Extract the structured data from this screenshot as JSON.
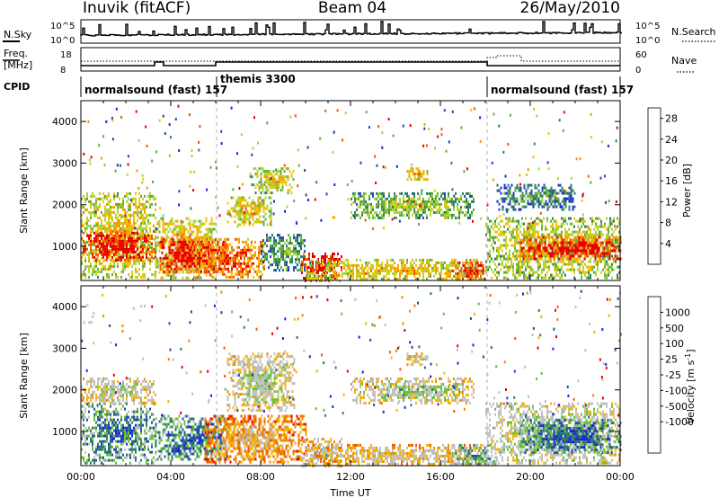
{
  "header": {
    "station": "Inuvik (fitACF)",
    "beam": "Beam 04",
    "date": "26/May/2010"
  },
  "summary_panels": {
    "nsky": {
      "label": "N.Sky",
      "ticks_left": [
        "10^5",
        "10^0"
      ],
      "right_label": "N.Search",
      "ticks_right": [
        "10^5",
        "10^0"
      ]
    },
    "freq": {
      "label_line1": "Freq.",
      "label_line2": "[MHz]",
      "ticks_left": [
        "18",
        "8"
      ],
      "right_label": "Nave",
      "ticks_right": [
        "60",
        "0"
      ]
    },
    "cpid": {
      "label": "CPID",
      "segments": [
        {
          "name": "normalsound (fast) 157",
          "start_h": 0,
          "end_h": 6
        },
        {
          "name": "themis 3300",
          "start_h": 6,
          "end_h": 18
        },
        {
          "name": "normalsound (fast) 157",
          "start_h": 18,
          "end_h": 24
        }
      ]
    }
  },
  "colors": {
    "power": [
      "#1e24dc",
      "#2448b4",
      "#2b7f63",
      "#5fae3c",
      "#a8d53a",
      "#f0c400",
      "#f89a00",
      "#f05a00",
      "#e80000"
    ],
    "velocity": [
      "#1e24dc",
      "#2448b4",
      "#2b7f63",
      "#67c13a",
      "#c0c0c0",
      "#c0c0c0",
      "#f5b400",
      "#f08a00",
      "#f05a00",
      "#e80000"
    ],
    "marker_line": "#b0b0b0"
  },
  "chart_data": [
    {
      "type": "heatmap",
      "name": "power",
      "ylabel": "Slant Range [km]",
      "x_range_h": [
        0,
        24
      ],
      "ylim_km": [
        180,
        4500
      ],
      "yticks": [
        1000,
        2000,
        3000,
        4000
      ],
      "colorbar": {
        "label": "Power [dB]",
        "ticks": [
          4,
          8,
          12,
          16,
          20,
          24,
          28
        ],
        "range": [
          0,
          30
        ]
      },
      "echo_regions": [
        {
          "h0": 0.0,
          "h1": 3.3,
          "km0": 250,
          "km1": 2300,
          "level": 0.55
        },
        {
          "h0": 0.0,
          "h1": 3.3,
          "km0": 650,
          "km1": 1350,
          "level": 0.9
        },
        {
          "h0": 3.3,
          "h1": 6.0,
          "km0": 250,
          "km1": 1700,
          "level": 0.6
        },
        {
          "h0": 3.5,
          "h1": 6.5,
          "km0": 400,
          "km1": 1200,
          "level": 0.95
        },
        {
          "h0": 5.0,
          "h1": 8.2,
          "km0": 250,
          "km1": 1200,
          "level": 0.75
        },
        {
          "h0": 6.5,
          "h1": 8.5,
          "km0": 1500,
          "km1": 2200,
          "level": 0.55
        },
        {
          "h0": 7.5,
          "h1": 9.5,
          "km0": 2300,
          "km1": 2900,
          "level": 0.5
        },
        {
          "h0": 8.0,
          "h1": 10.0,
          "km0": 400,
          "km1": 1300,
          "level": 0.3
        },
        {
          "h0": 9.8,
          "h1": 11.6,
          "km0": 200,
          "km1": 850,
          "level": 0.95
        },
        {
          "h0": 10.0,
          "h1": 17.8,
          "km0": 200,
          "km1": 700,
          "level": 0.55
        },
        {
          "h0": 12.0,
          "h1": 17.5,
          "km0": 1700,
          "km1": 2300,
          "level": 0.4
        },
        {
          "h0": 14.5,
          "h1": 15.5,
          "km0": 2600,
          "km1": 2900,
          "level": 0.6
        },
        {
          "h0": 16.5,
          "h1": 18.0,
          "km0": 200,
          "km1": 700,
          "level": 0.85
        },
        {
          "h0": 18.0,
          "h1": 24.0,
          "km0": 250,
          "km1": 1700,
          "level": 0.5
        },
        {
          "h0": 19.5,
          "h1": 24.0,
          "km0": 700,
          "km1": 1250,
          "level": 0.9
        },
        {
          "h0": 18.5,
          "h1": 22.0,
          "km0": 1900,
          "km1": 2500,
          "level": 0.25
        }
      ]
    },
    {
      "type": "heatmap",
      "name": "velocity",
      "ylabel": "Slant Range [km]",
      "xlabel": "Time UT",
      "x_range_h": [
        0,
        24
      ],
      "ylim_km": [
        180,
        4500
      ],
      "yticks": [
        1000,
        2000,
        3000,
        4000
      ],
      "xticks": [
        "00:00",
        "04:00",
        "08:00",
        "12:00",
        "16:00",
        "20:00",
        "00:00"
      ],
      "colorbar": {
        "label": "Velocity [m s",
        "label_sup": "-1",
        "label_close": "]",
        "ticks": [
          "1000",
          "500",
          "100",
          "25",
          "-25",
          "-100",
          "-500",
          "-1000"
        ]
      },
      "echo_regions": [
        {
          "h0": 0.0,
          "h1": 3.3,
          "km0": 250,
          "km1": 1700,
          "level": 0.7
        },
        {
          "h0": 0.0,
          "h1": 3.3,
          "km0": 1700,
          "km1": 2300,
          "level": 0.45
        },
        {
          "h0": 3.3,
          "h1": 6.5,
          "km0": 300,
          "km1": 1400,
          "level": 0.72
        },
        {
          "h0": 5.5,
          "h1": 10.0,
          "km0": 250,
          "km1": 1400,
          "level": 0.25
        },
        {
          "h0": 6.5,
          "h1": 9.5,
          "km0": 1500,
          "km1": 2900,
          "level": 0.45
        },
        {
          "h0": 9.8,
          "h1": 11.6,
          "km0": 200,
          "km1": 850,
          "level": 0.45
        },
        {
          "h0": 10.0,
          "h1": 17.8,
          "km0": 200,
          "km1": 700,
          "level": 0.35
        },
        {
          "h0": 12.0,
          "h1": 17.5,
          "km0": 1700,
          "km1": 2300,
          "level": 0.48
        },
        {
          "h0": 14.5,
          "h1": 15.5,
          "km0": 2600,
          "km1": 2900,
          "level": 0.45
        },
        {
          "h0": 16.5,
          "h1": 18.5,
          "km0": 200,
          "km1": 700,
          "level": 0.6
        },
        {
          "h0": 18.0,
          "h1": 24.0,
          "km0": 250,
          "km1": 1700,
          "level": 0.5
        },
        {
          "h0": 19.5,
          "h1": 24.0,
          "km0": 500,
          "km1": 1300,
          "level": 0.75
        }
      ]
    }
  ]
}
